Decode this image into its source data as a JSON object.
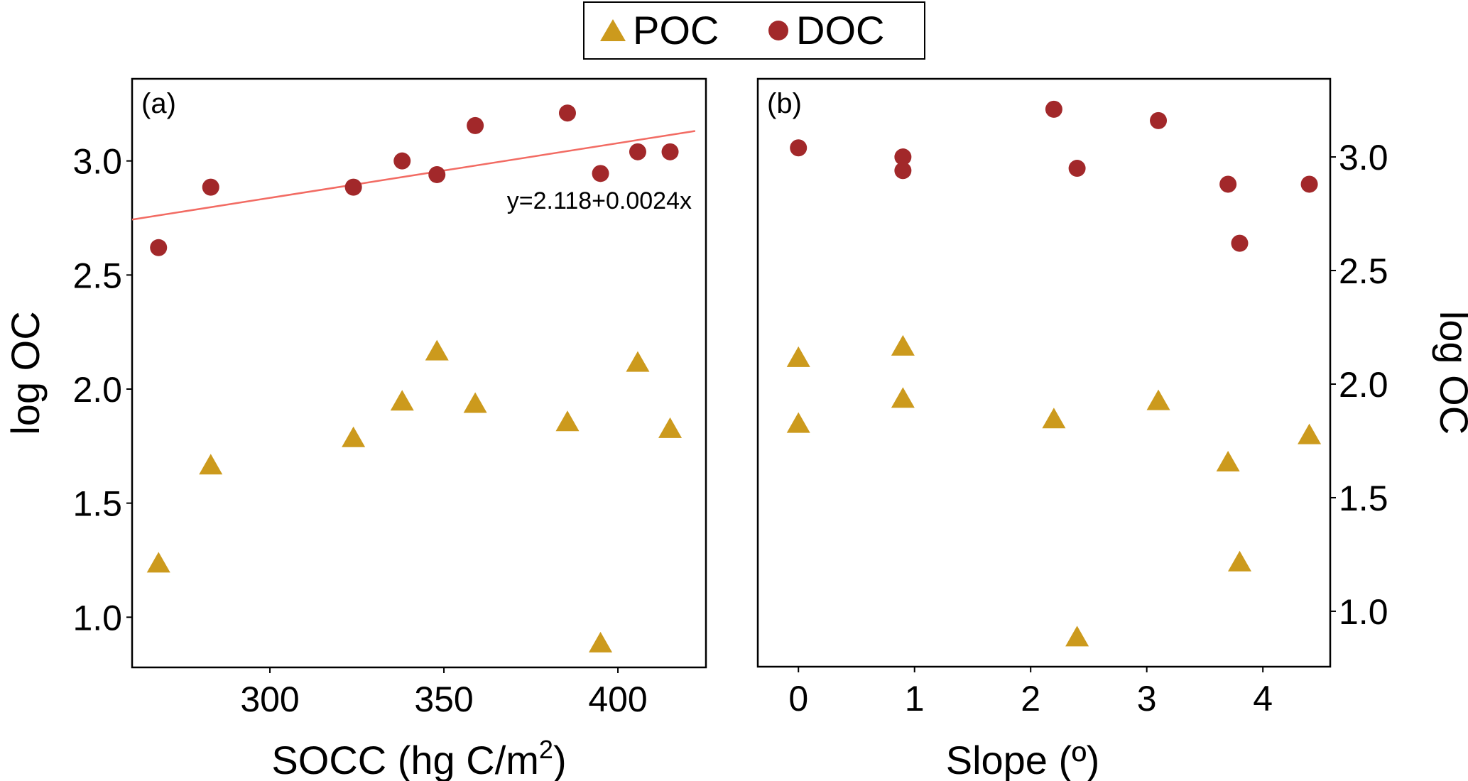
{
  "legend": {
    "items": [
      {
        "label": "POC",
        "marker": "triangle",
        "color": "#CC9A1D"
      },
      {
        "label": "DOC",
        "marker": "circle",
        "color": "#A2282A"
      }
    ]
  },
  "colors": {
    "poc": "#CC9A1D",
    "doc": "#A2282A",
    "regression": "#F26B63",
    "axis": "#000000"
  },
  "chart_data": [
    {
      "type": "scatter",
      "panel_label": "(a)",
      "title": "",
      "xlabel": "SOCC (hg C/m²)",
      "xlabel_base": "SOCC (hg C/m",
      "xlabel_sup": "2",
      "xlabel_tail": ")",
      "ylabel": "log OC",
      "yaxis_side": "left",
      "xlim": [
        260.4,
        425.3
      ],
      "ylim": [
        0.78,
        3.36
      ],
      "xticks": [
        300,
        350,
        400
      ],
      "xtick_labels": [
        "300",
        "350",
        "400"
      ],
      "yticks": [
        1.0,
        1.5,
        2.0,
        2.5,
        3.0
      ],
      "ytick_labels": [
        "1.0",
        "1.5",
        "2.0",
        "2.5",
        "3.0"
      ],
      "grid": false,
      "series": [
        {
          "name": "POC",
          "marker": "triangle",
          "x": [
            268,
            283,
            324,
            338,
            348,
            359,
            385.5,
            395,
            405.7,
            415
          ],
          "y": [
            1.23,
            1.66,
            1.78,
            1.94,
            2.16,
            1.93,
            1.85,
            0.88,
            2.11,
            1.82
          ]
        },
        {
          "name": "DOC",
          "marker": "circle",
          "x": [
            268,
            283,
            324,
            338,
            348,
            359,
            385.5,
            395,
            405.7,
            415
          ],
          "y": [
            2.62,
            2.885,
            2.885,
            3.0,
            2.94,
            3.155,
            3.21,
            2.945,
            3.04,
            3.04
          ]
        }
      ],
      "regression": {
        "series": "DOC",
        "intercept": 2.118,
        "slope": 0.0024,
        "x_range": [
          260.4,
          422.2
        ],
        "label": "y=2.118+0.0024x"
      }
    },
    {
      "type": "scatter",
      "panel_label": "(b)",
      "title": "",
      "xlabel": "Slope (º)",
      "ylabel": "log OC",
      "yaxis_side": "right",
      "xlim": [
        -0.35,
        4.58
      ],
      "ylim": [
        0.756,
        3.344
      ],
      "xticks": [
        0,
        1,
        2,
        3,
        4
      ],
      "xtick_labels": [
        "0",
        "1",
        "2",
        "3",
        "4"
      ],
      "yticks": [
        1.0,
        1.5,
        2.0,
        2.5,
        3.0
      ],
      "ytick_labels": [
        "1.0",
        "1.5",
        "2.0",
        "2.5",
        "3.0"
      ],
      "grid": false,
      "series": [
        {
          "name": "POC",
          "marker": "triangle",
          "x": [
            0,
            0,
            0.9,
            0.9,
            2.2,
            2.4,
            3.1,
            3.7,
            3.8,
            4.4
          ],
          "y": [
            2.11,
            1.82,
            2.16,
            1.93,
            1.84,
            0.88,
            1.92,
            1.65,
            1.21,
            1.77
          ]
        },
        {
          "name": "DOC",
          "marker": "circle",
          "x": [
            0,
            0.9,
            0.9,
            2.2,
            2.4,
            3.1,
            3.7,
            3.8,
            4.4
          ],
          "y": [
            3.04,
            3.0,
            2.94,
            3.21,
            2.95,
            3.16,
            2.88,
            2.62,
            2.88
          ]
        }
      ]
    }
  ]
}
